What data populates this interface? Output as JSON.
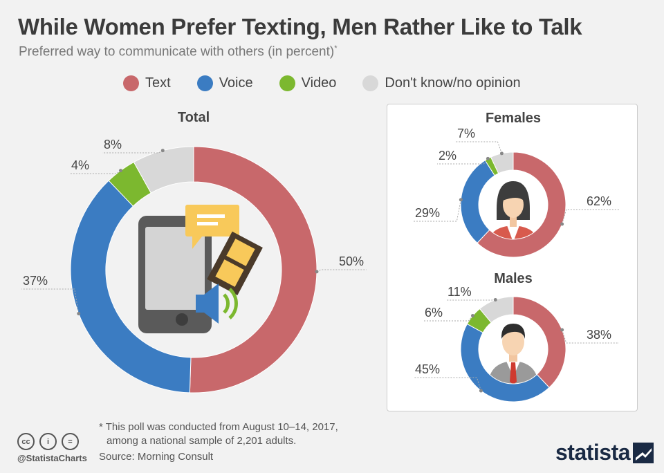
{
  "header": {
    "title": "While Women Prefer Texting, Men Rather Like to Talk",
    "subtitle": "Preferred way to communicate with others (in percent)",
    "subtitle_mark": "*"
  },
  "legend": [
    {
      "label": "Text",
      "color": "#c8686b"
    },
    {
      "label": "Voice",
      "color": "#3b7cc2"
    },
    {
      "label": "Video",
      "color": "#7cb82f"
    },
    {
      "label": "Don't know/no opinion",
      "color": "#d8d8d8"
    }
  ],
  "chart_data": [
    {
      "type": "pie",
      "title": "Total",
      "categories": [
        "Text",
        "Voice",
        "Video",
        "Don't know/no opinion"
      ],
      "values": [
        50,
        37,
        4,
        8
      ],
      "labels": [
        "50%",
        "37%",
        "4%",
        "8%"
      ]
    },
    {
      "type": "pie",
      "title": "Females",
      "categories": [
        "Text",
        "Voice",
        "Video",
        "Don't know/no opinion"
      ],
      "values": [
        62,
        29,
        2,
        7
      ],
      "labels": [
        "62%",
        "29%",
        "2%",
        "7%"
      ]
    },
    {
      "type": "pie",
      "title": "Males",
      "categories": [
        "Text",
        "Voice",
        "Video",
        "Don't know/no opinion"
      ],
      "values": [
        38,
        45,
        6,
        11
      ],
      "labels": [
        "38%",
        "45%",
        "6%",
        "11%"
      ]
    }
  ],
  "footer": {
    "footnote_line1": "* This poll was conducted from August 10–14, 2017,",
    "footnote_line2": "among a national sample of 2,201 adults.",
    "source": "Source: Morning Consult",
    "handle": "@StatistaCharts",
    "brand": "statista",
    "cc_icons": [
      "cc",
      "i",
      "="
    ]
  }
}
